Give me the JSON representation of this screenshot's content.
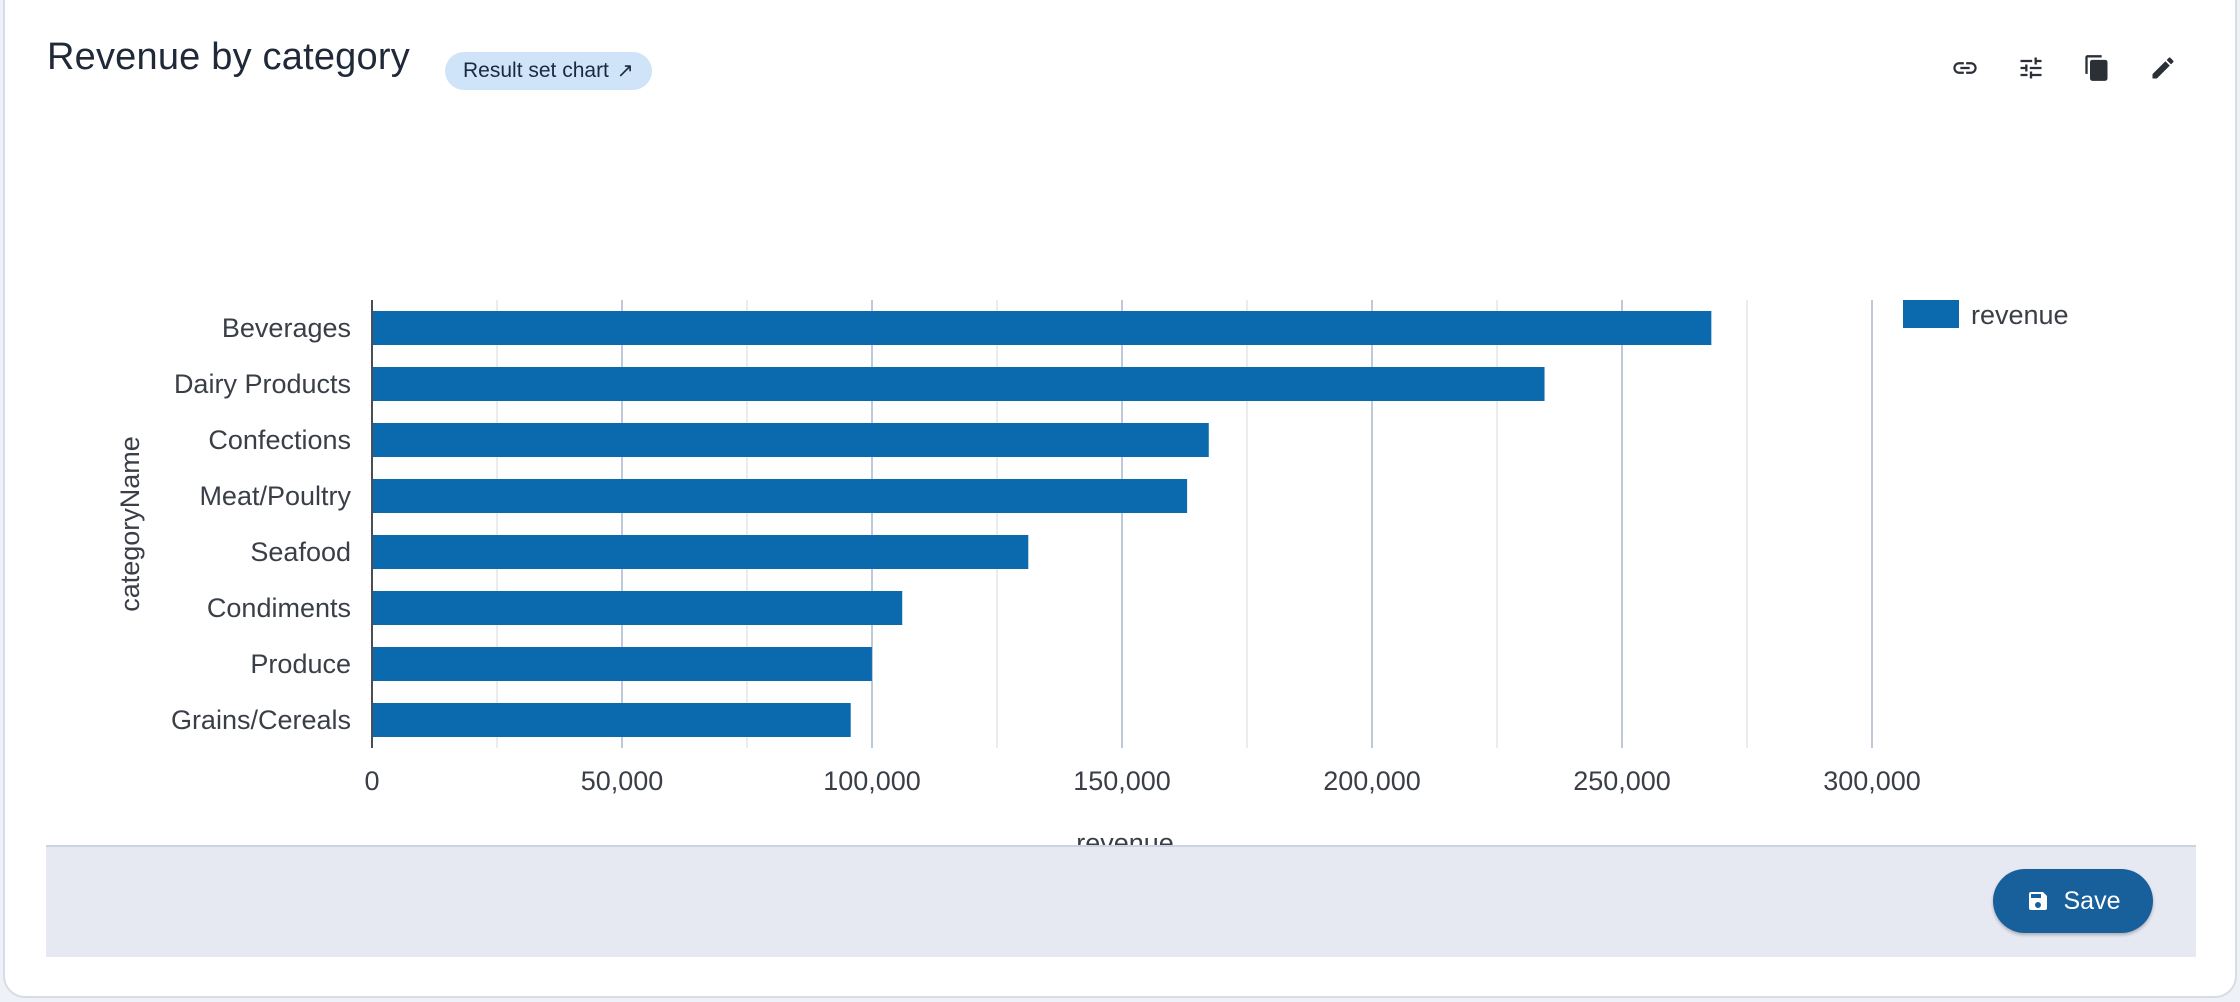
{
  "header": {
    "title": "Revenue by category",
    "badge_label": "Result set chart",
    "badge_icon": "external-arrow-icon"
  },
  "toolbar": {
    "icons": [
      "link-icon",
      "sliders-icon",
      "copy-icon",
      "edit-pencil-icon"
    ]
  },
  "footer": {
    "save_label": "Save",
    "save_icon": "floppy-disk-icon"
  },
  "colors": {
    "bar": "#0b6aae",
    "accent": "#17609b",
    "badge_bg": "#cfe4f8",
    "footer_bg": "#e6e8f2"
  },
  "chart_data": {
    "type": "bar",
    "orientation": "horizontal",
    "title": "",
    "xlabel": "revenue",
    "ylabel": "categoryName",
    "categories": [
      "Beverages",
      "Dairy Products",
      "Confections",
      "Meat/Poultry",
      "Seafood",
      "Condiments",
      "Produce",
      "Grains/Cereals"
    ],
    "series": [
      {
        "name": "revenue",
        "values": [
          267868,
          234507,
          167357,
          163022,
          131261,
          106047,
          99985,
          95744
        ]
      }
    ],
    "xlim": [
      0,
      300000
    ],
    "xticks": [
      0,
      50000,
      100000,
      150000,
      200000,
      250000,
      300000
    ],
    "xtick_labels": [
      "0",
      "50,000",
      "100,000",
      "150,000",
      "200,000",
      "250,000",
      "300,000"
    ],
    "grid": true,
    "legend": "top-right"
  }
}
